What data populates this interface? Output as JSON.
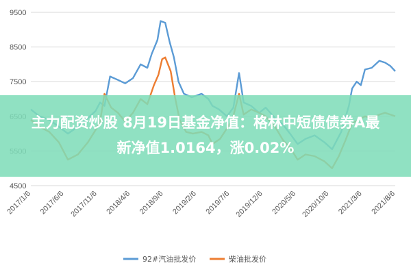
{
  "banner": {
    "line1": "主力配资炒股 8月19日基金净值：格林中短债债券A最",
    "line2": "新净值1.0164，涨0.02%"
  },
  "chart_data": {
    "type": "line",
    "title": "",
    "xlabel": "",
    "ylabel": "",
    "ylim": [
      4500,
      9500
    ],
    "yticks": [
      4500,
      5500,
      6500,
      7500,
      8500,
      9500
    ],
    "xlim": [
      "2017-01-06",
      "2021-08-06"
    ],
    "xtick_labels": [
      "2017/1/6",
      "2017/6/6",
      "2017/11/6",
      "2018/4/6",
      "2018/9/6",
      "2019/2/6",
      "2019/7/6",
      "2019/12/6",
      "2020/5/6",
      "2020/10/6",
      "2021/3/6",
      "2021/8/6"
    ],
    "grid": "horizontal",
    "legend_position": "bottom",
    "series": [
      {
        "name": "92#汽油批发价",
        "color": "#5b9bd5",
        "points": [
          [
            "2017-01-06",
            6700
          ],
          [
            "2017-02-15",
            6500
          ],
          [
            "2017-04-01",
            6400
          ],
          [
            "2017-05-15",
            6200
          ],
          [
            "2017-06-25",
            6000
          ],
          [
            "2017-08-10",
            6200
          ],
          [
            "2017-09-25",
            6450
          ],
          [
            "2017-10-30",
            6650
          ],
          [
            "2017-11-20",
            6900
          ],
          [
            "2017-12-10",
            6800
          ],
          [
            "2018-01-05",
            7650
          ],
          [
            "2018-02-10",
            7550
          ],
          [
            "2018-03-15",
            7450
          ],
          [
            "2018-04-20",
            7600
          ],
          [
            "2018-05-25",
            8000
          ],
          [
            "2018-06-25",
            7900
          ],
          [
            "2018-07-15",
            8300
          ],
          [
            "2018-08-10",
            8700
          ],
          [
            "2018-08-25",
            9250
          ],
          [
            "2018-09-15",
            9200
          ],
          [
            "2018-10-05",
            8650
          ],
          [
            "2018-10-25",
            8200
          ],
          [
            "2018-11-15",
            7500
          ],
          [
            "2018-12-10",
            7150
          ],
          [
            "2019-01-15",
            7050
          ],
          [
            "2019-03-01",
            7150
          ],
          [
            "2019-04-01",
            7000
          ],
          [
            "2019-04-20",
            6800
          ],
          [
            "2019-05-20",
            6700
          ],
          [
            "2019-06-25",
            6500
          ],
          [
            "2019-07-25",
            6750
          ],
          [
            "2019-08-20",
            7750
          ],
          [
            "2019-09-10",
            6900
          ],
          [
            "2019-10-15",
            6800
          ],
          [
            "2019-11-20",
            6600
          ],
          [
            "2019-12-20",
            6750
          ],
          [
            "2020-02-01",
            6450
          ],
          [
            "2020-03-10",
            6250
          ],
          [
            "2020-04-10",
            6000
          ],
          [
            "2020-05-15",
            5700
          ],
          [
            "2020-06-20",
            5850
          ],
          [
            "2020-08-01",
            5950
          ],
          [
            "2020-09-15",
            5750
          ],
          [
            "2020-10-20",
            5550
          ],
          [
            "2020-12-01",
            6050
          ],
          [
            "2021-01-05",
            6800
          ],
          [
            "2021-01-20",
            7300
          ],
          [
            "2021-02-10",
            7500
          ],
          [
            "2021-03-01",
            7400
          ],
          [
            "2021-03-20",
            7850
          ],
          [
            "2021-04-20",
            7900
          ],
          [
            "2021-05-25",
            8100
          ],
          [
            "2021-06-20",
            8050
          ],
          [
            "2021-07-15",
            7950
          ],
          [
            "2021-08-06",
            7800
          ]
        ]
      },
      {
        "name": "柴油批发价",
        "color": "#ed7d31",
        "points": [
          [
            "2017-01-06",
            6400
          ],
          [
            "2017-02-15",
            6200
          ],
          [
            "2017-04-01",
            6050
          ],
          [
            "2017-05-15",
            5750
          ],
          [
            "2017-06-25",
            5250
          ],
          [
            "2017-08-10",
            5400
          ],
          [
            "2017-09-25",
            5750
          ],
          [
            "2017-10-30",
            6100
          ],
          [
            "2017-11-20",
            6350
          ],
          [
            "2017-12-10",
            7150
          ],
          [
            "2018-01-10",
            6750
          ],
          [
            "2018-02-10",
            6600
          ],
          [
            "2018-03-15",
            6350
          ],
          [
            "2018-04-20",
            6600
          ],
          [
            "2018-05-25",
            7000
          ],
          [
            "2018-06-25",
            6850
          ],
          [
            "2018-07-25",
            7400
          ],
          [
            "2018-08-15",
            7700
          ],
          [
            "2018-09-01",
            8150
          ],
          [
            "2018-09-15",
            8200
          ],
          [
            "2018-10-10",
            7800
          ],
          [
            "2018-10-30",
            7050
          ],
          [
            "2018-11-20",
            6400
          ],
          [
            "2018-12-20",
            6050
          ],
          [
            "2019-01-20",
            6000
          ],
          [
            "2019-03-01",
            6050
          ],
          [
            "2019-04-01",
            5950
          ],
          [
            "2019-04-20",
            5700
          ],
          [
            "2019-05-25",
            5850
          ],
          [
            "2019-06-25",
            6150
          ],
          [
            "2019-07-20",
            6400
          ],
          [
            "2019-08-20",
            7150
          ],
          [
            "2019-09-10",
            6550
          ],
          [
            "2019-10-15",
            6700
          ],
          [
            "2019-11-20",
            6600
          ],
          [
            "2019-12-20",
            6500
          ],
          [
            "2020-02-01",
            6200
          ],
          [
            "2020-03-10",
            5800
          ],
          [
            "2020-04-10",
            5600
          ],
          [
            "2020-05-15",
            5250
          ],
          [
            "2020-06-20",
            5400
          ],
          [
            "2020-08-01",
            5350
          ],
          [
            "2020-09-15",
            5200
          ],
          [
            "2020-10-20",
            5000
          ],
          [
            "2020-11-20",
            5350
          ],
          [
            "2020-12-20",
            5800
          ],
          [
            "2021-01-20",
            6300
          ],
          [
            "2021-02-20",
            6400
          ],
          [
            "2021-03-20",
            6500
          ],
          [
            "2021-04-20",
            6450
          ],
          [
            "2021-05-25",
            6550
          ],
          [
            "2021-06-20",
            6600
          ],
          [
            "2021-07-15",
            6550
          ],
          [
            "2021-08-06",
            6500
          ]
        ]
      }
    ]
  }
}
